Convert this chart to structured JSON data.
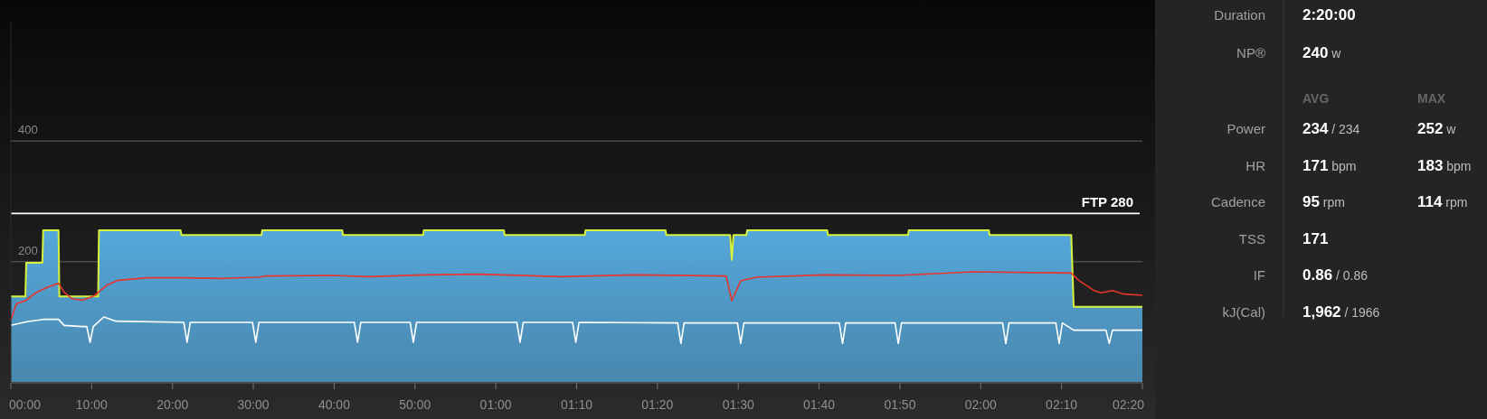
{
  "chart_data": [
    {
      "type": "area",
      "ylim": [
        0,
        600
      ],
      "yticks": [
        200,
        400
      ],
      "xlim": [
        0,
        140
      ],
      "xticks": [
        {
          "value": 0,
          "label": "00:00"
        },
        {
          "value": 10,
          "label": "10:00"
        },
        {
          "value": 20,
          "label": "20:00"
        },
        {
          "value": 30,
          "label": "30:00"
        },
        {
          "value": 40,
          "label": "40:00"
        },
        {
          "value": 50,
          "label": "50:00"
        },
        {
          "value": 60,
          "label": "01:00"
        },
        {
          "value": 70,
          "label": "01:10"
        },
        {
          "value": 80,
          "label": "01:20"
        },
        {
          "value": 90,
          "label": "01:30"
        },
        {
          "value": 100,
          "label": "01:40"
        },
        {
          "value": 110,
          "label": "01:50"
        },
        {
          "value": 120,
          "label": "02:00"
        },
        {
          "value": 130,
          "label": "02:10"
        },
        {
          "value": 140,
          "label": "02:20"
        }
      ],
      "grid": "y",
      "ref_lines": [
        {
          "axis": "y",
          "value": 280,
          "label": "FTP 280",
          "color": "#ffffff"
        }
      ],
      "series": [
        {
          "type": "area",
          "color": "#55a8db",
          "x": [
            0,
            1.8,
            1.9,
            3.9,
            4.0,
            5.9,
            6.0,
            10.8,
            10.9,
            21,
            21.1,
            31,
            31.1,
            41,
            41.1,
            51,
            51.1,
            61,
            61.1,
            71,
            71.1,
            81,
            81.1,
            89,
            89.2,
            89.4,
            91,
            91.1,
            101,
            101.1,
            111,
            111.1,
            121,
            121.1,
            131.2,
            131.5,
            140
          ],
          "values": [
            142,
            142,
            198,
            198,
            252,
            252,
            142,
            142,
            252,
            252,
            244,
            244,
            252,
            252,
            244,
            244,
            252,
            252,
            244,
            244,
            252,
            252,
            244,
            244,
            203,
            244,
            244,
            252,
            252,
            244,
            244,
            252,
            252,
            244,
            244,
            125,
            125
          ]
        },
        {
          "type": "line",
          "color": "#e8342c",
          "x": [
            0,
            0.7,
            1.8,
            3.2,
            4.6,
            5.9,
            6.6,
            7.6,
            8.9,
            10.3,
            11.9,
            13.3,
            16.9,
            21.5,
            26.1,
            30.6,
            31.5,
            39.8,
            44.3,
            51.2,
            58,
            68.1,
            77.3,
            88.5,
            89.2,
            90.3,
            92.2,
            100.6,
            109.8,
            114.5,
            119.1,
            131.2,
            132.1,
            134,
            134.9,
            136.3,
            137.7,
            140
          ],
          "values": [
            103,
            130,
            135,
            149,
            158,
            164,
            149,
            138,
            136,
            143,
            161,
            169,
            173,
            173,
            172,
            174,
            176,
            177,
            175,
            178,
            179,
            175,
            178,
            176,
            135,
            168,
            174,
            178,
            177,
            180,
            183,
            181,
            169,
            152,
            148,
            152,
            146,
            144
          ]
        },
        {
          "type": "line",
          "color": "#ffffff",
          "x": [
            0,
            2,
            4,
            5.9,
            6.6,
            8.9,
            9.4,
            9.8,
            10.2,
            11.5,
            13,
            21.4,
            21.8,
            22.2,
            29.9,
            30.3,
            30.7,
            42.5,
            42.9,
            43.3,
            49.4,
            49.8,
            50.2,
            62.6,
            63,
            63.4,
            69.5,
            69.9,
            70.3,
            82.5,
            82.9,
            83.3,
            89.9,
            90.3,
            90.7,
            102.5,
            102.9,
            103.3,
            109.4,
            109.8,
            110.2,
            122.7,
            123.1,
            123.5,
            129.3,
            129.7,
            130.1,
            131.5,
            135.5,
            135.9,
            136.3,
            140
          ],
          "values": [
            94,
            100,
            104,
            104,
            94,
            92,
            92,
            66,
            92,
            108,
            101,
            99,
            66,
            99,
            99,
            66,
            99,
            99,
            66,
            99,
            99,
            66,
            99,
            99,
            66,
            99,
            99,
            66,
            99,
            98,
            64,
            98,
            98,
            64,
            98,
            98,
            64,
            98,
            98,
            64,
            98,
            98,
            64,
            98,
            98,
            64,
            98,
            86,
            86,
            64,
            86,
            86
          ]
        }
      ]
    },
    {
      "type": "other",
      "categories": [
        "Duration",
        "NP®",
        "Power",
        "HR",
        "Cadence",
        "TSS",
        "IF",
        "kJ(Cal)"
      ],
      "annotations": [
        "2:20:00",
        "240 w",
        "AVG",
        "MAX",
        "234 / 234",
        "252 w",
        "171 bpm",
        "183 bpm",
        "95 rpm",
        "114 rpm",
        "171",
        "0.86 / 0.86",
        "1,962 / 1966"
      ]
    }
  ]
}
